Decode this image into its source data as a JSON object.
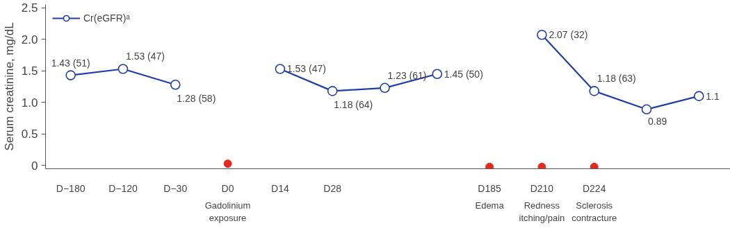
{
  "chart_data": {
    "type": "line",
    "ylabel": "Serum creatinine, mg/dL",
    "categories": [
      "D−180",
      "D−120",
      "D−30",
      "D0",
      "D14",
      "D28",
      null,
      null,
      "D185",
      "D210",
      "D224",
      null,
      null
    ],
    "series": [
      {
        "name": "Cr(eGFR)ᵃ",
        "color": "#1f3fa6",
        "marker": "circle",
        "values": [
          1.43,
          1.53,
          1.28,
          null,
          1.53,
          1.18,
          1.23,
          1.45,
          null,
          2.07,
          1.18,
          0.89,
          1.1
        ],
        "value_labels": [
          "1.43 (51)",
          "1.53 (47)",
          "1.28 (58)",
          null,
          "1.53 (47)",
          "1.18 (64)",
          "1.23 (61)",
          "1.45 (50)",
          null,
          "2.07 (32)",
          "1.18 (63)",
          "0.89",
          "1.1"
        ]
      },
      {
        "type": "scatter",
        "color": "#e32b1e",
        "marker": "circle",
        "values": [
          null,
          null,
          null,
          0.03,
          null,
          null,
          null,
          null,
          -0.02,
          -0.02,
          -0.02,
          null,
          null
        ]
      }
    ],
    "annotations": [
      "Gadolinium\nexposure",
      "Edema",
      "Redness\nitching/pain",
      "Sclerosis\ncontracture"
    ],
    "ylim": [
      -0.05,
      2.55
    ],
    "yticks": [
      0,
      0.5,
      {
        "value": 1,
        "label": "1.0"
      },
      1.5,
      {
        "value": 2,
        "label": "2.0"
      },
      2.5
    ],
    "grid": false,
    "legend": "top left"
  }
}
